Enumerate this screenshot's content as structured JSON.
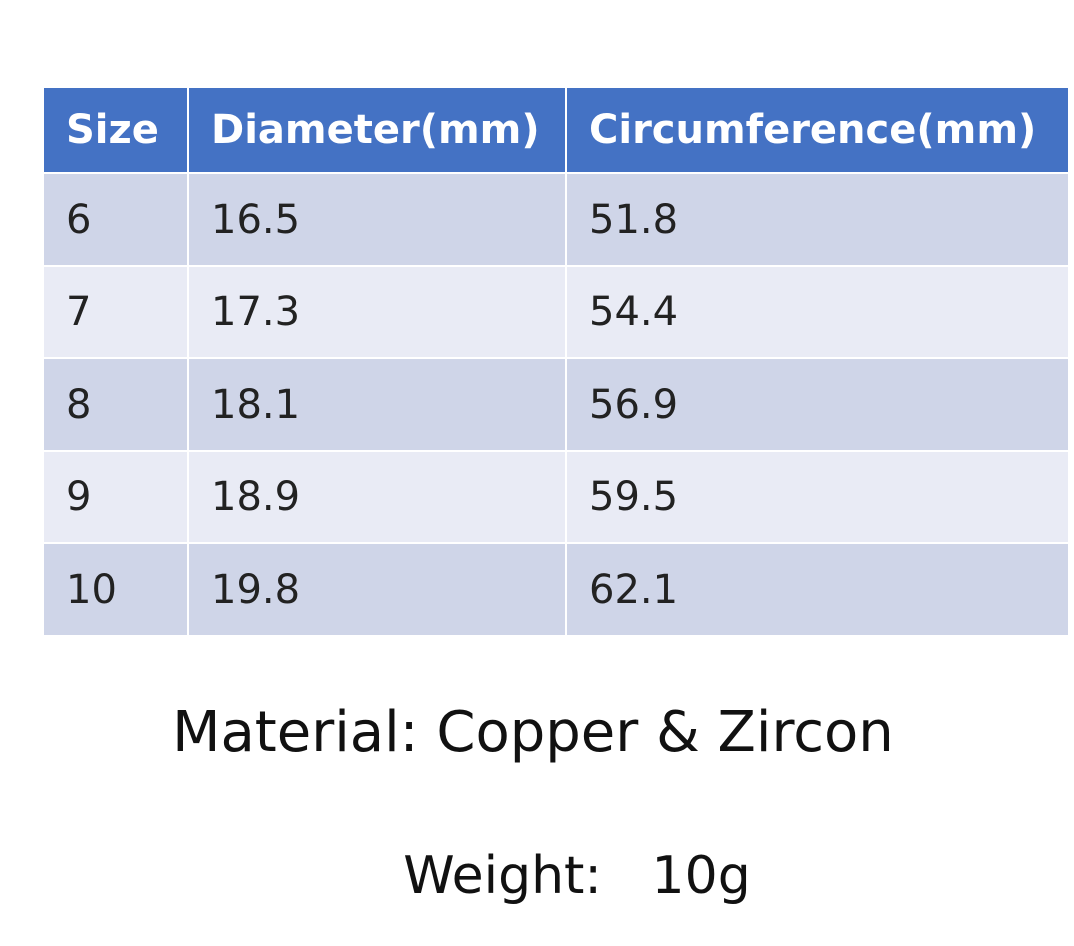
{
  "table": {
    "header": [
      "Size",
      "Diameter(mm)",
      "Circumference(mm)"
    ],
    "rows": [
      [
        "6",
        "16.5",
        "51.8"
      ],
      [
        "7",
        "17.3",
        "54.4"
      ],
      [
        "8",
        "18.1",
        "56.9"
      ],
      [
        "9",
        "18.9",
        "59.5"
      ],
      [
        "10",
        "19.8",
        "62.1"
      ]
    ]
  },
  "material": "Material: Copper & Zircon",
  "weight": "Weight:   10g"
}
